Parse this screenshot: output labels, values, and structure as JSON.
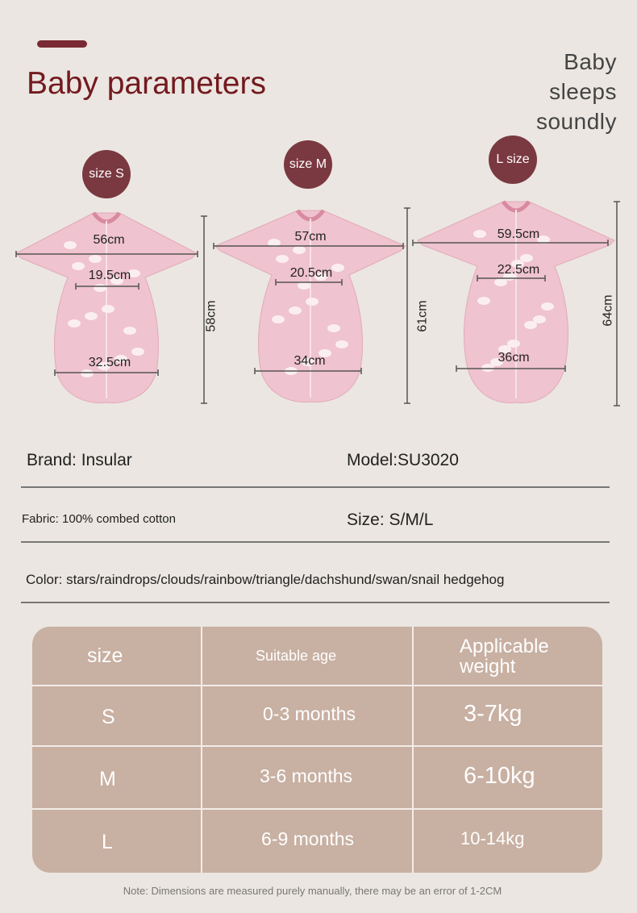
{
  "header": {
    "title": "Baby parameters",
    "slogan": [
      "Baby",
      "sleeps",
      "soundly"
    ]
  },
  "colors": {
    "accent": "#731a1f",
    "badge": "#7a3840",
    "garment": "#efc3cf",
    "table": "#c8b0a2",
    "background": "#ebe6e1"
  },
  "sizes": [
    {
      "badge": "size S",
      "chest": "56cm",
      "waist": "19.5cm",
      "hem": "32.5cm",
      "length": "58cm"
    },
    {
      "badge": "size M",
      "chest": "57cm",
      "waist": "20.5cm",
      "hem": "34cm",
      "length": "61cm"
    },
    {
      "badge": "L size",
      "chest": "59.5cm",
      "waist": "22.5cm",
      "hem": "36cm",
      "length": "64cm"
    }
  ],
  "info": {
    "brand": "Brand: Insular",
    "model": "Model:SU3020",
    "fabric": "Fabric: 100% combed cotton",
    "size": "Size: S/M/L",
    "color": "Color: stars/raindrops/clouds/rainbow/triangle/dachshund/swan/snail hedgehog"
  },
  "table": {
    "headers": [
      "size",
      "Suitable age",
      "Applicable weight"
    ],
    "rows": [
      [
        "S",
        "0-3 months",
        "3-7kg"
      ],
      [
        "M",
        "3-6 months",
        "6-10kg"
      ],
      [
        "L",
        "6-9 months",
        "10-14kg"
      ]
    ]
  },
  "note": "Note: Dimensions are measured purely manually, there may be an error of 1-2CM"
}
